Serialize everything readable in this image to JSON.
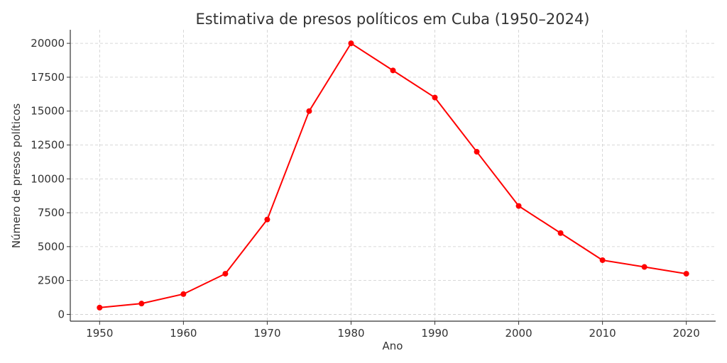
{
  "chart_data": {
    "type": "line",
    "title": "Estimativa de presos políticos em Cuba (1950–2024)",
    "xlabel": "Ano",
    "ylabel": "Número de presos políticos",
    "x": [
      1950,
      1955,
      1960,
      1965,
      1970,
      1975,
      1980,
      1985,
      1990,
      1995,
      2000,
      2005,
      2010,
      2015,
      2020
    ],
    "series": [
      {
        "values": [
          500,
          800,
          1500,
          3000,
          7000,
          15000,
          20000,
          18000,
          16000,
          12000,
          8000,
          6000,
          4000,
          3500,
          3000
        ],
        "color": "#ff0000",
        "marker": "circle"
      }
    ],
    "xticks": [
      1950,
      1960,
      1970,
      1980,
      1990,
      2000,
      2010,
      2020
    ],
    "yticks": [
      0,
      2500,
      5000,
      7500,
      10000,
      12500,
      15000,
      17500,
      20000
    ],
    "xlim": [
      1946.5,
      2023.5
    ],
    "ylim": [
      -500,
      21000
    ],
    "grid": true
  }
}
